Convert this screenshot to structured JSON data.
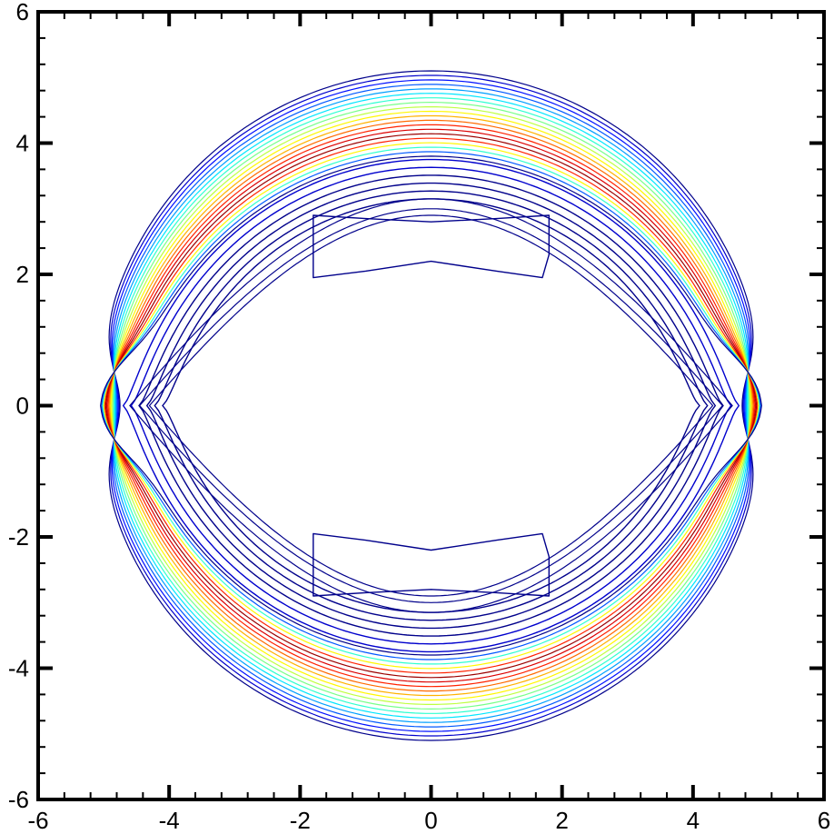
{
  "chart_data": {
    "type": "contour",
    "title": "",
    "xlabel": "",
    "ylabel": "",
    "xlim": [
      -6,
      6
    ],
    "ylim": [
      -6,
      6
    ],
    "x_ticks": [
      -6,
      -4,
      -2,
      0,
      2,
      4,
      6
    ],
    "y_ticks": [
      -6,
      -4,
      -2,
      0,
      2,
      4,
      6
    ],
    "x_tick_labels": [
      "-6",
      "-4",
      "-2",
      "0",
      "2",
      "4",
      "6"
    ],
    "y_tick_labels": [
      "-6",
      "-4",
      "-2",
      "0",
      "2",
      "4",
      "6"
    ],
    "minor_ticks_per_major": 4,
    "grid": false,
    "legend": "none",
    "colormap": [
      "#00008b",
      "#0000ff",
      "#0080ff",
      "#00ffff",
      "#80ff80",
      "#ffff00",
      "#ff8000",
      "#ff0000",
      "#8b0000"
    ],
    "outer_band": {
      "description_free": true,
      "center": [
        0,
        0
      ],
      "outer_radius": 5.1,
      "inner_radius_top": 3.8,
      "inner_radius_side": 4.75,
      "levels": 20
    },
    "inner_closed_contours": [
      {
        "name": "",
        "points": [
          [
            -1.8,
            2.9
          ],
          [
            -1.0,
            2.85
          ],
          [
            0,
            2.8
          ],
          [
            1.0,
            2.85
          ],
          [
            1.8,
            2.9
          ],
          [
            1.8,
            2.3
          ],
          [
            1.7,
            1.95
          ],
          [
            1.0,
            2.05
          ],
          [
            0,
            2.2
          ],
          [
            -1.0,
            2.05
          ],
          [
            -1.8,
            1.95
          ],
          [
            -1.8,
            2.5
          ]
        ]
      },
      {
        "name": "",
        "points": [
          [
            -1.8,
            -2.9
          ],
          [
            -1.0,
            -2.85
          ],
          [
            0,
            -2.8
          ],
          [
            1.0,
            -2.85
          ],
          [
            1.8,
            -2.9
          ],
          [
            1.8,
            -2.3
          ],
          [
            1.7,
            -1.95
          ],
          [
            1.0,
            -2.05
          ],
          [
            0,
            -2.2
          ],
          [
            -1.0,
            -2.05
          ],
          [
            -1.8,
            -1.95
          ],
          [
            -1.8,
            -2.5
          ]
        ]
      }
    ]
  }
}
